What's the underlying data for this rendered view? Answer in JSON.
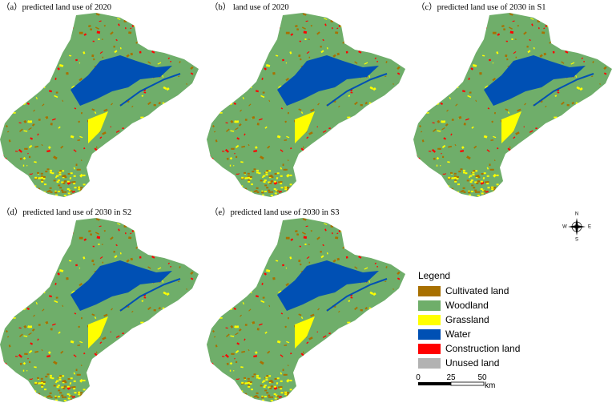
{
  "panels": [
    {
      "title": "（a）predicted land use of 2020"
    },
    {
      "title": "（b） land use of 2020"
    },
    {
      "title": "（c）predicted land use of 2030 in S1"
    },
    {
      "title": "（d）predicted land use of 2030 in S2"
    },
    {
      "title": "（e）predicted land use of 2030 in S3"
    }
  ],
  "legend": {
    "title": "Legend",
    "items": [
      {
        "label": "Cultivated land",
        "color": "#a87000"
      },
      {
        "label": "Woodland",
        "color": "#6fae6a"
      },
      {
        "label": "Grassland",
        "color": "#ffff00"
      },
      {
        "label": "Water",
        "color": "#0050b4"
      },
      {
        "label": "Construction land",
        "color": "#ff0000"
      },
      {
        "label": "Unused land",
        "color": "#b2b2b2"
      }
    ]
  },
  "scale_bar": {
    "labels": [
      "0",
      "25",
      "50"
    ],
    "unit": "km"
  },
  "compass": {
    "north": "N",
    "south": "S",
    "east": "E",
    "west": "W"
  }
}
